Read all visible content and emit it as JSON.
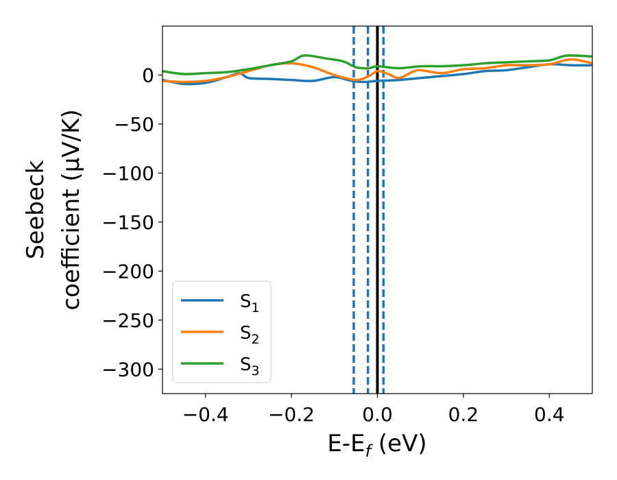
{
  "chart_data": {
    "type": "line",
    "xlabel_main": "E-E",
    "xlabel_sub": "f",
    "xlabel_unit": " (eV)",
    "ylabel_line1": "Seebeck",
    "ylabel_line2": "coefficient  (μV/K)",
    "xlim": [
      -0.5,
      0.5
    ],
    "ylim": [
      -325,
      50
    ],
    "xticks": [
      -0.4,
      -0.2,
      0.0,
      0.2,
      0.4
    ],
    "xtick_labels": [
      "−0.4",
      "−0.2",
      "0.0",
      "0.2",
      "0.4"
    ],
    "yticks": [
      0,
      -50,
      -100,
      -150,
      -200,
      -250,
      -300
    ],
    "ytick_labels": [
      "0",
      "−50",
      "−100",
      "−150",
      "−200",
      "−250",
      "−300"
    ],
    "grid": false,
    "legend_position": "lower-left",
    "vlines": [
      {
        "x": -0.055,
        "style": "dashed",
        "color": "#1f77b4"
      },
      {
        "x": -0.022,
        "style": "dashed",
        "color": "#1f77b4"
      },
      {
        "x": 0.014,
        "style": "dashed",
        "color": "#1f77b4"
      },
      {
        "x": 0.0,
        "style": "solid",
        "color": "#000000"
      }
    ],
    "series": [
      {
        "name": "S",
        "subscript": "1",
        "color": "#1f77b4",
        "x": [
          -0.5,
          -0.45,
          -0.4,
          -0.35,
          -0.32,
          -0.3,
          -0.25,
          -0.2,
          -0.15,
          -0.1,
          -0.06,
          -0.03,
          0.0,
          0.05,
          0.1,
          0.15,
          0.2,
          0.25,
          0.3,
          0.35,
          0.4,
          0.45,
          0.5
        ],
        "y": [
          -5,
          -9,
          -8,
          -2,
          2,
          -3,
          -4,
          -5,
          -6,
          -2,
          -6,
          -7,
          -6,
          -5,
          -3,
          -1,
          1,
          4,
          5,
          8,
          11,
          10,
          10
        ]
      },
      {
        "name": "S",
        "subscript": "2",
        "color": "#ff7f0e",
        "x": [
          -0.5,
          -0.45,
          -0.4,
          -0.35,
          -0.3,
          -0.25,
          -0.2,
          -0.15,
          -0.1,
          -0.05,
          -0.02,
          0.0,
          0.02,
          0.05,
          0.08,
          0.1,
          0.15,
          0.2,
          0.25,
          0.3,
          0.35,
          0.4,
          0.45,
          0.5
        ],
        "y": [
          -6,
          -7,
          -6,
          -2,
          4,
          10,
          12,
          8,
          0,
          -5,
          -1,
          4,
          2,
          -3,
          3,
          5,
          2,
          6,
          7,
          10,
          10,
          11,
          16,
          12
        ]
      },
      {
        "name": "S",
        "subscript": "3",
        "color": "#2ca02c",
        "x": [
          -0.5,
          -0.45,
          -0.4,
          -0.35,
          -0.3,
          -0.25,
          -0.2,
          -0.17,
          -0.12,
          -0.08,
          -0.05,
          -0.02,
          0.0,
          0.05,
          0.1,
          0.15,
          0.2,
          0.25,
          0.3,
          0.35,
          0.4,
          0.43,
          0.45,
          0.5
        ],
        "y": [
          4,
          1,
          2,
          3,
          6,
          10,
          14,
          20,
          17,
          14,
          8,
          7,
          9,
          7,
          9,
          9,
          10,
          12,
          13,
          14,
          15,
          19,
          20,
          19
        ]
      }
    ]
  }
}
